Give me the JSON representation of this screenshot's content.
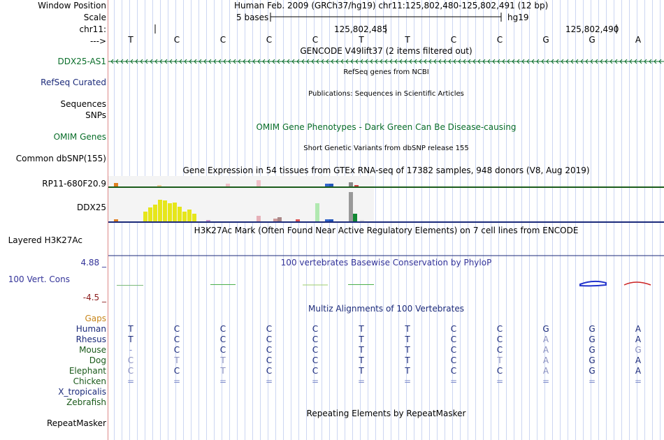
{
  "labels": {
    "window_position": "Window Position",
    "scale": "Scale",
    "chrom": "chr11:",
    "strand": "--->",
    "gencode_gene": "DDX25-AS1",
    "refseq": "RefSeq Curated",
    "sequences": "Sequences",
    "snps": "SNPs",
    "omim": "OMIM Genes",
    "dbsnp": "Common dbSNP(155)",
    "rp11": "RP11-680F20.9",
    "ddx25": "DDX25",
    "h3k27ac": "Layered H3K27Ac",
    "cons_max": "4.88 _",
    "cons_label": "100 Vert. Cons",
    "cons_min": "-4.5 _",
    "gaps": "Gaps",
    "species": [
      "Human",
      "Rhesus",
      "Mouse",
      "Dog",
      "Elephant",
      "Chicken",
      "X_tropicalis",
      "Zebrafish"
    ],
    "repeatmasker": "RepeatMasker"
  },
  "header": {
    "assembly_position": "Human Feb. 2009 (GRCh37/hg19)     chr11:125,802,480-125,802,491 (12 bp)",
    "scale_text": "5 bases",
    "scale_db": "hg19",
    "pos1": "125,802,485",
    "pos2": "125,802,490"
  },
  "bases": [
    "T",
    "C",
    "C",
    "C",
    "C",
    "T",
    "T",
    "C",
    "C",
    "G",
    "G",
    "A"
  ],
  "tracks": {
    "gencode_title": "GENCODE V49lift37 (2 items filtered out)",
    "refseq_title": "RefSeq genes from NCBI",
    "publications_title": "Publications: Sequences in Scientific Articles",
    "omim_title": "OMIM Gene Phenotypes - Dark Green Can Be Disease-causing",
    "dbsnp_title": "Short Genetic Variants from dbSNP release 155",
    "gtex_title": "Gene Expression in 54 tissues from GTEx RNA-seq of 17382 samples, 948 donors (V8, Aug 2019)",
    "h3k27ac_title": "H3K27Ac Mark (Often Found Near Active Regulatory Elements) on 7 cell lines from ENCODE",
    "phylop_title": "100 vertebrates Basewise Conservation by PhyloP",
    "multiz_title": "Multiz Alignments of 100 Vertebrates",
    "repeat_title": "Repeating Elements by RepeatMasker"
  },
  "alignments": {
    "Human": [
      "T",
      "C",
      "C",
      "C",
      "C",
      "T",
      "T",
      "C",
      "C",
      "G",
      "G",
      "A"
    ],
    "Rhesus": [
      "T",
      "C",
      "C",
      "C",
      "C",
      "T",
      "T",
      "C",
      "C",
      "A",
      "G",
      "A"
    ],
    "Mouse": [
      "-",
      "C",
      "C",
      "C",
      "C",
      "T",
      "T",
      "C",
      "C",
      "A",
      "G",
      "G"
    ],
    "Dog": [
      "C",
      "T",
      "T",
      "C",
      "C",
      "T",
      "T",
      "C",
      "T",
      "A",
      "G",
      "A"
    ],
    "Elephant": [
      "C",
      "C",
      "T",
      "C",
      "C",
      "T",
      "T",
      "C",
      "C",
      "A",
      "G",
      "A"
    ],
    "Chicken": [
      "=",
      "=",
      "=",
      "=",
      "=",
      "=",
      "=",
      "=",
      "=",
      "=",
      "=",
      "="
    ]
  },
  "colors": {
    "separator": "#dd8888",
    "gencode_green": "#0a6e2a",
    "refseq_navy": "#1b2a7a",
    "gtex_yellow": "#e6e61a",
    "conservation_blue": "#333399",
    "conservation_red": "#8b1a1a",
    "gaps_orange": "#c8861a",
    "grid_blue": "#ccd6f2"
  }
}
